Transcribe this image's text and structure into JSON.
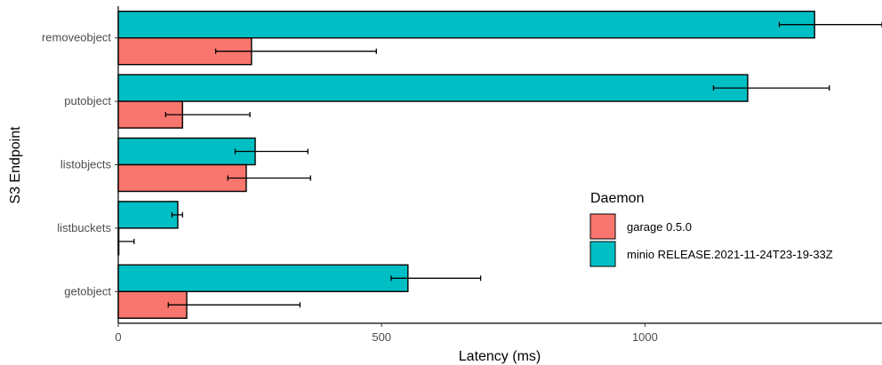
{
  "chart_data": {
    "type": "bar",
    "orientation": "horizontal",
    "xlabel": "Latency (ms)",
    "ylabel": "S3 Endpoint",
    "xlim": [
      0,
      1450
    ],
    "x_ticks": [
      0,
      500,
      1000
    ],
    "categories": [
      "removeobject",
      "putobject",
      "listobjects",
      "listbuckets",
      "getobject"
    ],
    "grid": false,
    "legend": {
      "title": "Daemon",
      "position": "right"
    },
    "series": [
      {
        "name": "minio RELEASE.2021-11-24T23-19-33Z",
        "color": "#00BFC4",
        "values": [
          1322,
          1195,
          260,
          113,
          550
        ],
        "error_low": [
          1255,
          1130,
          222,
          102,
          518
        ],
        "error_high": [
          1450,
          1350,
          360,
          122,
          688
        ]
      },
      {
        "name": "garage 0.5.0",
        "color": "#F8766D",
        "values": [
          253,
          122,
          243,
          1,
          130
        ],
        "error_low": [
          185,
          90,
          208,
          0,
          95
        ],
        "error_high": [
          490,
          250,
          365,
          30,
          345
        ]
      }
    ]
  }
}
